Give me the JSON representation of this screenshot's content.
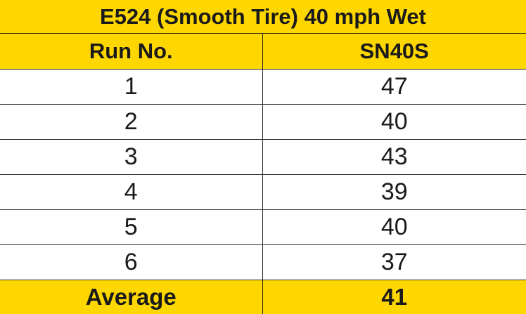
{
  "title": "E524 (Smooth Tire) 40 mph Wet",
  "columns": [
    "Run No.",
    "SN40S"
  ],
  "rows": [
    [
      "1",
      "47"
    ],
    [
      "2",
      "40"
    ],
    [
      "3",
      "43"
    ],
    [
      "4",
      "39"
    ],
    [
      "5",
      "40"
    ],
    [
      "6",
      "37"
    ]
  ],
  "summary": {
    "label": "Average",
    "value": "41"
  },
  "colors": {
    "accent": "#ffd700",
    "body": "#ffffff",
    "border": "#2a2a2a"
  }
}
